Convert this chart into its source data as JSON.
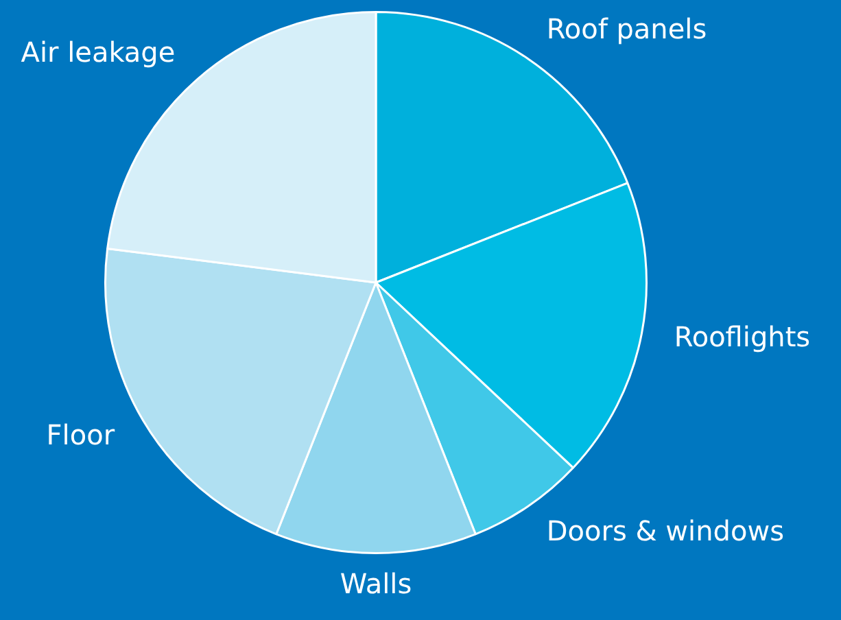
{
  "chart_data": {
    "type": "pie",
    "categories": [
      "Roof panels",
      "Rooflights",
      "Doors & windows",
      "Walls",
      "Floor",
      "Air leakage"
    ],
    "values": [
      19,
      18,
      7,
      12,
      21,
      23
    ],
    "colors": [
      "#00b0dc",
      "#00bce4",
      "#40c8e8",
      "#90d6ee",
      "#b0e0f2",
      "#d6eff9"
    ],
    "legend": false
  }
}
